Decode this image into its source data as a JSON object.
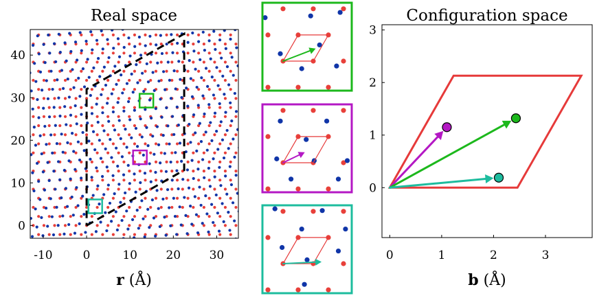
{
  "colors": {
    "red": "#e8403a",
    "blue": "#1035a8",
    "green": "#1cb81c",
    "magenta": "#b418c4",
    "teal": "#1dbc9e",
    "cell": "#e63a3a",
    "black": "#000000"
  },
  "chart_data": [
    {
      "type": "scatter",
      "title": "Real space",
      "xlabel_bold": "r",
      "xlabel_unit": "(Å)",
      "xlim": [
        -13,
        35
      ],
      "ylim": [
        -3,
        46
      ],
      "xticks": [
        "-10",
        "0",
        "10",
        "20",
        "30"
      ],
      "xtick_values": [
        -10,
        0,
        10,
        20,
        30
      ],
      "yticks": [
        "0",
        "10",
        "20",
        "30",
        "40"
      ],
      "ytick_values": [
        0,
        10,
        20,
        30,
        40
      ],
      "series": [
        {
          "color": "red",
          "lattice": "a1=(2.46,0), a2=(1.23,2.13)"
        },
        {
          "color": "blue",
          "lattice": "twisted copy of red lattice"
        }
      ],
      "moire_cell_dashed": [
        [
          0,
          0
        ],
        [
          22.5,
          13
        ],
        [
          22.5,
          45
        ],
        [
          0,
          32
        ]
      ],
      "highlight_boxes": [
        {
          "color": "green",
          "center": [
            13.8,
            29.3
          ]
        },
        {
          "color": "magenta",
          "center": [
            12.3,
            16
          ]
        },
        {
          "color": "teal",
          "center": [
            2,
            4.5
          ]
        }
      ]
    },
    {
      "type": "scatter",
      "title": "",
      "panels": [
        {
          "border": "green",
          "arrow_to_fraction": [
            0.72,
            0.48
          ]
        },
        {
          "border": "magenta",
          "arrow_to_fraction": [
            0.48,
            0.4
          ]
        },
        {
          "border": "teal",
          "arrow_to_fraction": [
            0.85,
            0.07
          ]
        }
      ]
    },
    {
      "type": "scatter",
      "title": "Configuration space",
      "xlabel_bold": "b",
      "xlabel_unit": "(Å)",
      "xlim": [
        -0.15,
        3.9
      ],
      "ylim": [
        -0.95,
        3.1
      ],
      "xticks": [
        "0",
        "1",
        "2",
        "3"
      ],
      "xtick_values": [
        0,
        1,
        2,
        3
      ],
      "yticks": [
        "0",
        "1",
        "2",
        "3"
      ],
      "ytick_values": [
        0,
        1,
        2,
        3
      ],
      "unit_cell": [
        [
          0,
          0
        ],
        [
          2.46,
          0
        ],
        [
          3.69,
          2.13
        ],
        [
          1.23,
          2.13
        ]
      ],
      "points": [
        {
          "name": "magenta",
          "x": 1.1,
          "y": 1.15,
          "color": "magenta"
        },
        {
          "name": "green",
          "x": 2.43,
          "y": 1.32,
          "color": "green"
        },
        {
          "name": "teal",
          "x": 2.1,
          "y": 0.19,
          "color": "teal"
        }
      ]
    }
  ]
}
